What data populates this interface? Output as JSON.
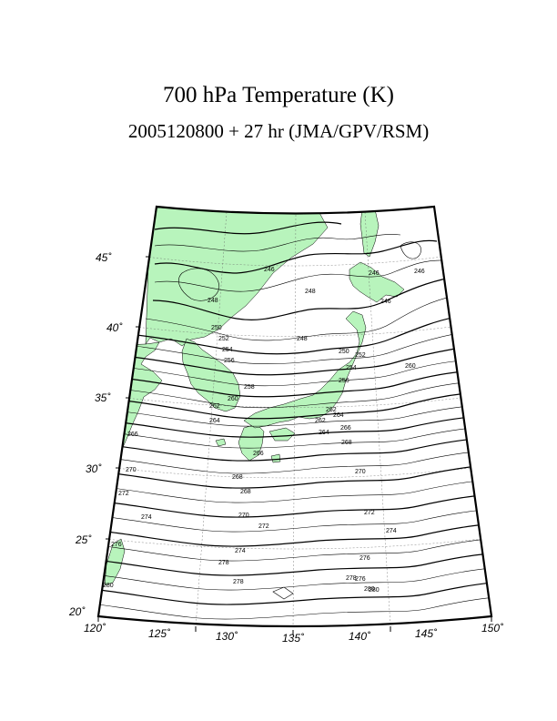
{
  "title": "700 hPa Temperature (K)",
  "subtitle": "2005120800 + 27 hr (JMA/GPV/RSM)",
  "colors": {
    "land": "#b8f4bc",
    "ocean": "#ffffff",
    "contour": "#000000",
    "grid": "#666666"
  },
  "map": {
    "projection": "conic",
    "lon_range": [
      120,
      150
    ],
    "lat_range": [
      20,
      47
    ],
    "lat_labels": [
      "45˚",
      "40˚",
      "35˚",
      "30˚",
      "25˚",
      "20˚"
    ],
    "lon_labels": [
      "120˚",
      "125˚",
      "130˚",
      "135˚",
      "140˚",
      "145˚",
      "150˚"
    ],
    "contour_labels": [
      "246",
      "248",
      "246",
      "246",
      "248",
      "246",
      "248",
      "250",
      "252",
      "254",
      "256",
      "258",
      "260",
      "262",
      "264",
      "266",
      "268",
      "270",
      "272",
      "274",
      "276",
      "278",
      "280",
      "250",
      "252",
      "254",
      "256",
      "262",
      "264",
      "266",
      "268",
      "270",
      "272",
      "274",
      "276",
      "278",
      "280",
      "260",
      "262",
      "264",
      "266",
      "268",
      "270",
      "272",
      "274",
      "276",
      "278",
      "280"
    ]
  }
}
